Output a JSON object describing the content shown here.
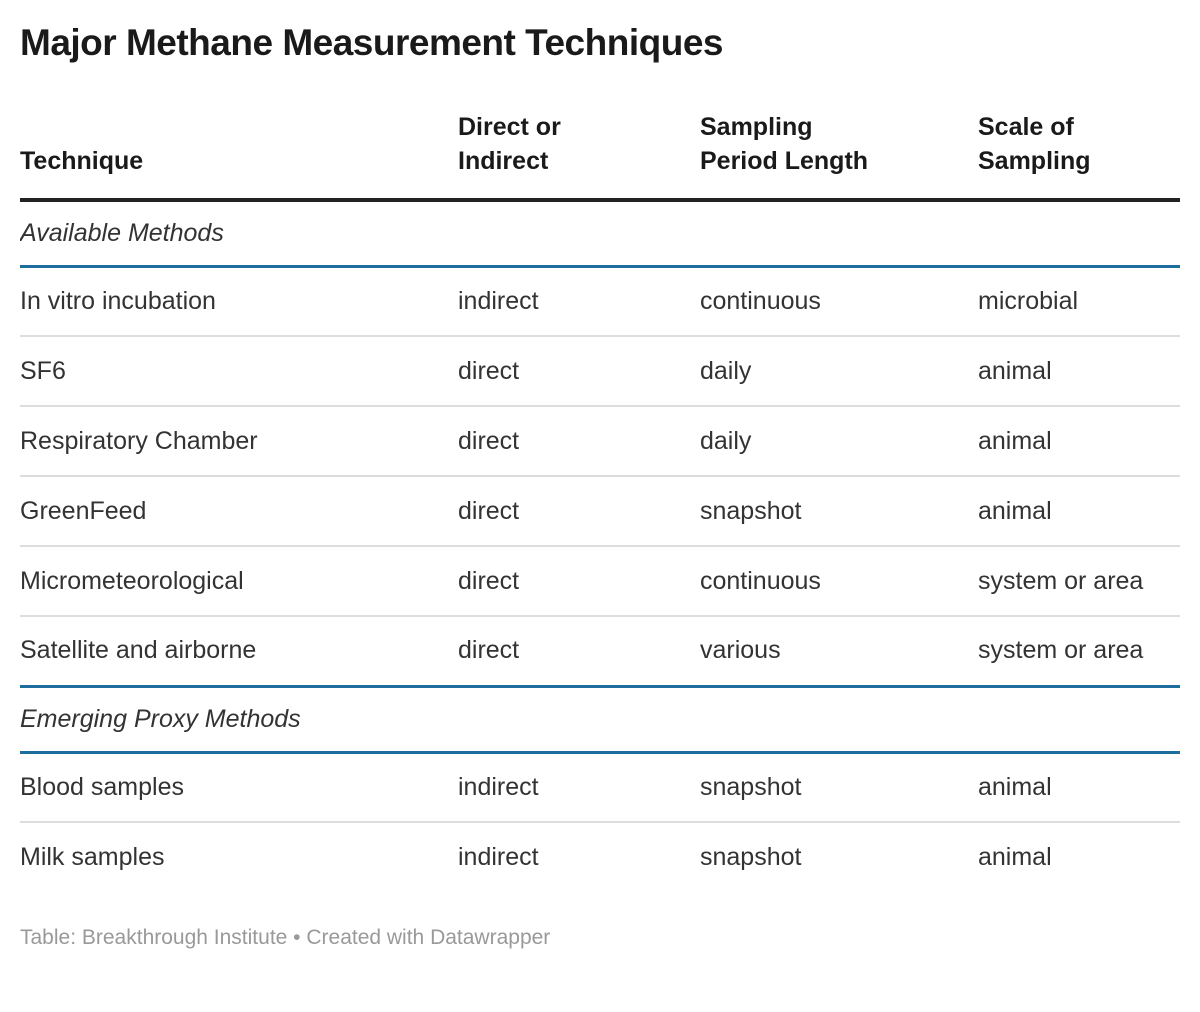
{
  "title": "Major Methane Measurement Techniques",
  "chart_data": {
    "type": "table",
    "title": "Major Methane Measurement Techniques",
    "columns": [
      "Technique",
      "Direct or Indirect",
      "Sampling Period Length",
      "Scale of Sampling"
    ],
    "header_lines": [
      [
        "Technique"
      ],
      [
        "Direct or",
        "Indirect"
      ],
      [
        "Sampling",
        "Period Length"
      ],
      [
        "Scale of",
        "Sampling"
      ]
    ],
    "sections": [
      {
        "label": "Available Methods",
        "rows": [
          [
            "In vitro incubation",
            "indirect",
            "continuous",
            "microbial"
          ],
          [
            "SF6",
            "direct",
            "daily",
            "animal"
          ],
          [
            "Respiratory Chamber",
            "direct",
            "daily",
            "animal"
          ],
          [
            "GreenFeed",
            "direct",
            "snapshot",
            "animal"
          ],
          [
            "Micrometeorological",
            "direct",
            "continuous",
            "system or area"
          ],
          [
            "Satellite and airborne",
            "direct",
            "various",
            "system or area"
          ]
        ]
      },
      {
        "label": "Emerging Proxy Methods",
        "rows": [
          [
            "Blood samples",
            "indirect",
            "snapshot",
            "animal"
          ],
          [
            "Milk samples",
            "indirect",
            "snapshot",
            "animal"
          ]
        ]
      }
    ]
  },
  "footer": {
    "text": "Table: Breakthrough Institute • Created with Datawrapper"
  },
  "colors": {
    "header_rule": "#222222",
    "section_rule": "#1d6e9e",
    "row_divider": "#dddddd",
    "body_text": "#333333",
    "heading_text": "#1a1a1a",
    "footer_text": "#999999"
  }
}
